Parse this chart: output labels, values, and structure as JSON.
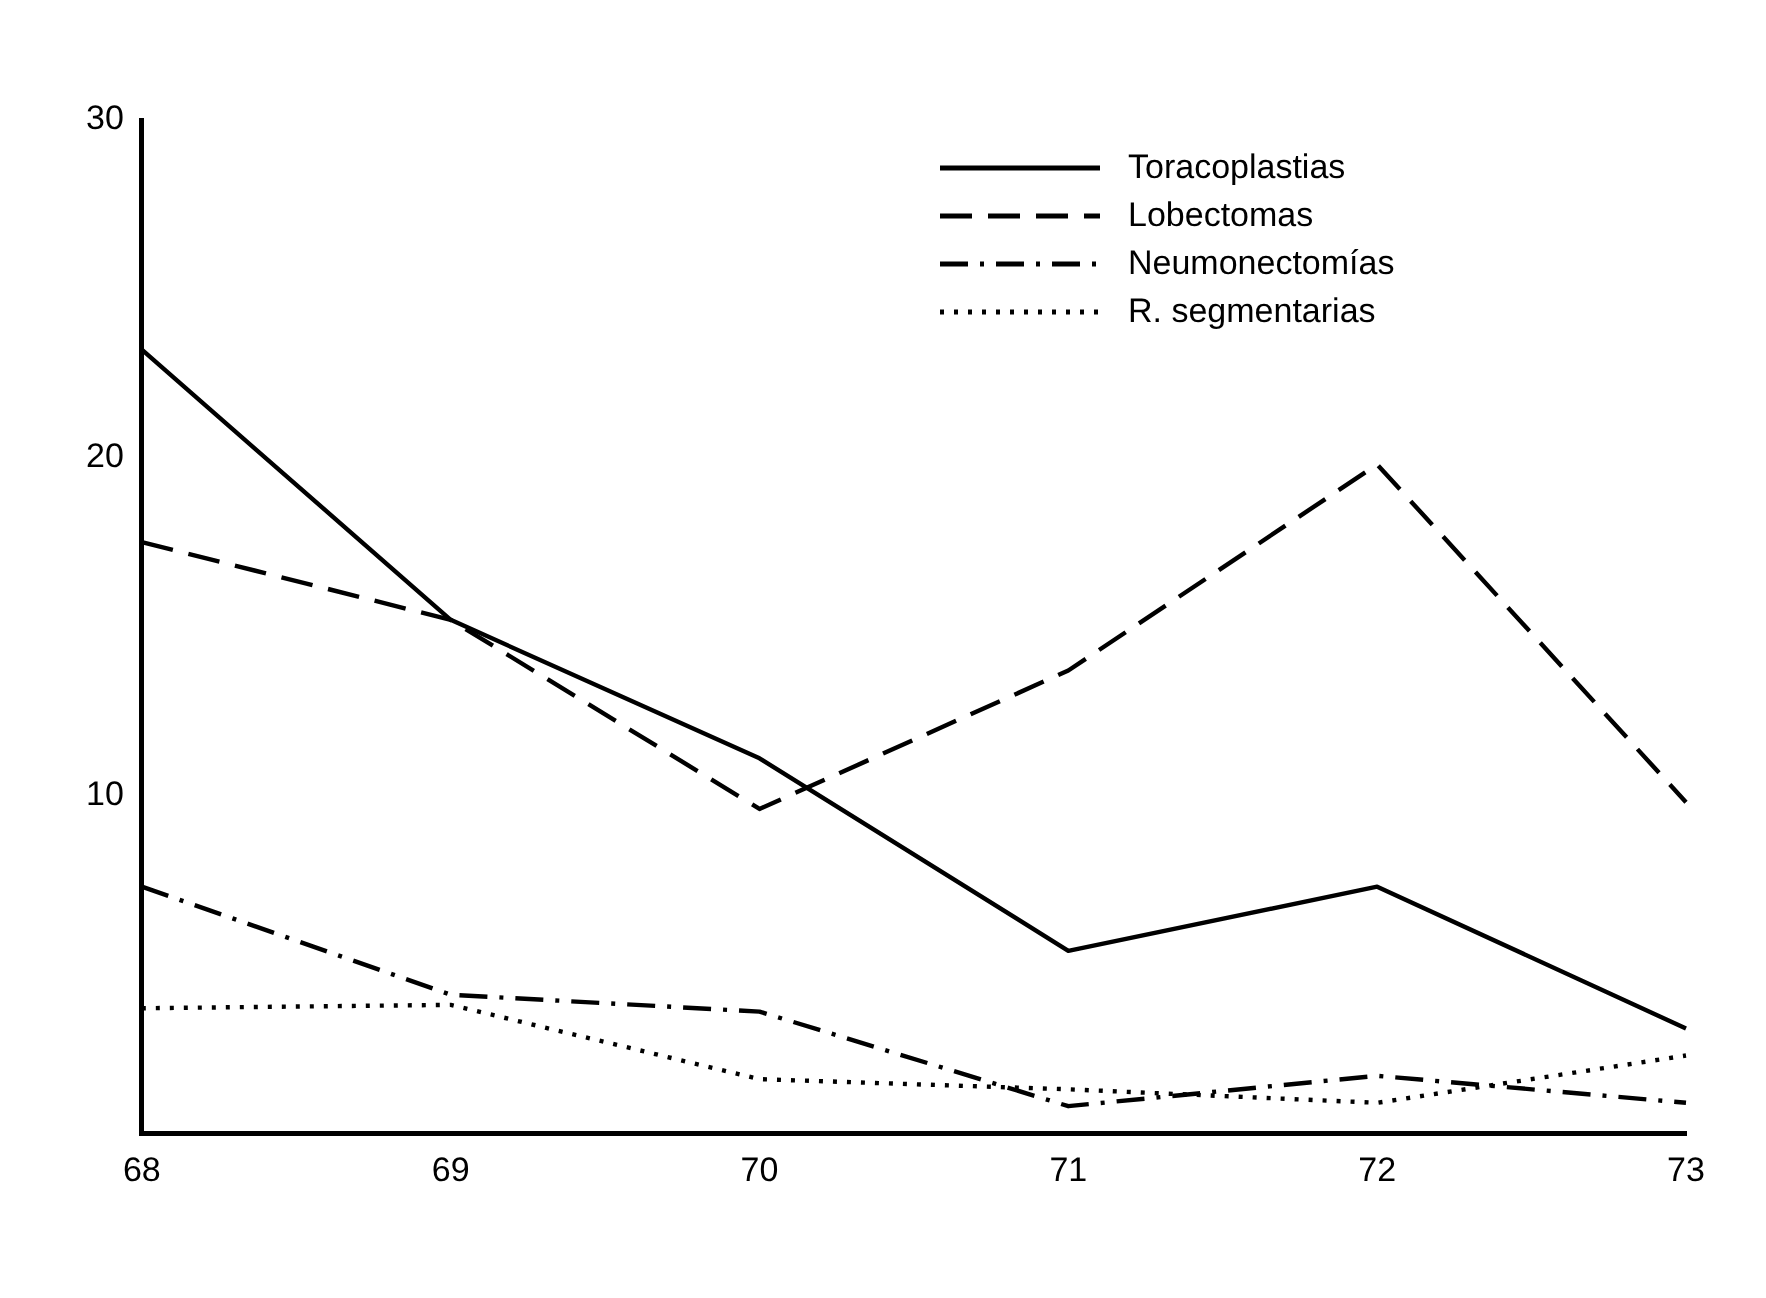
{
  "chart_data": {
    "type": "line",
    "categories": [
      "68",
      "69",
      "70",
      "71",
      "72",
      "73"
    ],
    "ylim": [
      0,
      30
    ],
    "yticks": [
      10,
      20,
      30
    ],
    "tick_labels": "xy",
    "grid": false,
    "legend": "top right",
    "marker": "none",
    "series": [
      {
        "name": "Toracoplastias",
        "color": "#000000",
        "line_style": "solid",
        "values": [
          23.2,
          15.2,
          11.1,
          5.4,
          7.3,
          3.1
        ]
      },
      {
        "name": "Lobectomas",
        "color": "#000000",
        "line_style": "dashed",
        "values": [
          17.5,
          15.2,
          9.6,
          13.7,
          19.8,
          9.8
        ]
      },
      {
        "name": "Neumonectomías",
        "color": "#000000",
        "line_style": "dashdot",
        "values": [
          7.3,
          4.1,
          3.6,
          0.8,
          1.7,
          0.9
        ]
      },
      {
        "name": "R. segmentarias",
        "color": "#000000",
        "line_style": "dotted",
        "values": [
          3.7,
          3.8,
          1.6,
          1.3,
          0.9,
          2.3
        ]
      }
    ]
  }
}
